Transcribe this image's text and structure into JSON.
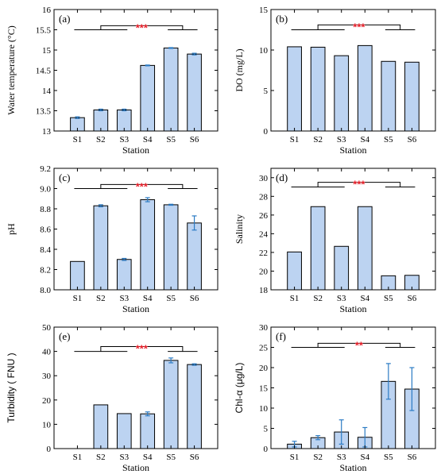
{
  "colors": {
    "bar_fill": "#bcd3f1",
    "bar_stroke": "#000000",
    "error_bar": "#2b7bc4",
    "significance": "#e8202a",
    "bracket": "#000000"
  },
  "chart_data": [
    {
      "type": "bar",
      "panel": "(a)",
      "categories": [
        "S1",
        "S2",
        "S3",
        "S4",
        "S5",
        "S6"
      ],
      "values": [
        13.33,
        13.52,
        13.52,
        14.62,
        15.05,
        14.9
      ],
      "errors": [
        0.02,
        0.02,
        0.02,
        0.01,
        0.01,
        0.02
      ],
      "xlabel": "Station",
      "ylabel": "Water temperature (°C)",
      "ylim": [
        13,
        16
      ],
      "yticks": [
        "13",
        "13.5",
        "14",
        "14.5",
        "15",
        "15.5",
        "16"
      ],
      "significance": "***",
      "bracket_levels": [
        15.5,
        15.6
      ],
      "grid": false
    },
    {
      "type": "bar",
      "panel": "(b)",
      "categories": [
        "S1",
        "S2",
        "S3",
        "S4",
        "S5",
        "S6"
      ],
      "values": [
        10.4,
        10.35,
        9.3,
        10.55,
        8.6,
        8.5
      ],
      "errors": [
        0,
        0,
        0,
        0,
        0,
        0
      ],
      "xlabel": "Station",
      "ylabel": "DO (mg/L)",
      "ylim": [
        0,
        15
      ],
      "yticks": [
        "0",
        "5",
        "10",
        "15"
      ],
      "significance": "***",
      "bracket_levels": [
        12.5,
        13.1
      ],
      "grid": false
    },
    {
      "type": "bar",
      "panel": "(c)",
      "categories": [
        "S1",
        "S2",
        "S3",
        "S4",
        "S5",
        "S6"
      ],
      "values": [
        8.28,
        8.83,
        8.3,
        8.89,
        8.84,
        8.66
      ],
      "errors": [
        0,
        0.01,
        0.01,
        0.02,
        0.005,
        0.07
      ],
      "xlabel": "Station",
      "ylabel": "pH",
      "ylim": [
        8.0,
        9.2
      ],
      "yticks": [
        "8.0",
        "8.2",
        "8.4",
        "8.6",
        "8.8",
        "9.0",
        "9.2"
      ],
      "significance": "***",
      "bracket_levels": [
        9.0,
        9.04
      ],
      "grid": false
    },
    {
      "type": "bar",
      "panel": "(d)",
      "categories": [
        "S1",
        "S2",
        "S3",
        "S4",
        "S5",
        "S6"
      ],
      "values": [
        22.05,
        26.9,
        22.65,
        26.9,
        19.5,
        19.55
      ],
      "errors": [
        0,
        0,
        0,
        0,
        0,
        0
      ],
      "xlabel": "Station",
      "ylabel": "Salinity",
      "ylim": [
        18,
        31
      ],
      "yticks": [
        "18",
        "20",
        "22",
        "24",
        "26",
        "28",
        "30"
      ],
      "significance": "***",
      "bracket_levels": [
        29.0,
        29.5
      ],
      "grid": false
    },
    {
      "type": "bar",
      "panel": "(e)",
      "categories": [
        "S1",
        "S2",
        "S3",
        "S4",
        "S5",
        "S6"
      ],
      "values": [
        0,
        18.0,
        14.4,
        14.3,
        36.3,
        34.6
      ],
      "errors": [
        0,
        0,
        0,
        0.8,
        1.0,
        0.3
      ],
      "xlabel": "Station",
      "ylabel": "Turbidity ( FNU )",
      "ylim": [
        0,
        50
      ],
      "yticks": [
        "0",
        "10",
        "20",
        "30",
        "40",
        "50"
      ],
      "significance": "***",
      "bracket_levels": [
        40,
        42
      ],
      "grid": false
    },
    {
      "type": "bar",
      "panel": "(f)",
      "categories": [
        "S1",
        "S2",
        "S3",
        "S4",
        "S5",
        "S6"
      ],
      "values": [
        1.1,
        2.7,
        4.1,
        2.8,
        16.6,
        14.7
      ],
      "errors": [
        0.7,
        0.5,
        3.0,
        2.4,
        4.4,
        5.3
      ],
      "xlabel": "Station",
      "ylabel": "Chl-α (μg/L)",
      "ylim": [
        0,
        30
      ],
      "yticks": [
        "0",
        "5",
        "10",
        "15",
        "20",
        "25",
        "30"
      ],
      "significance": "**",
      "bracket_levels": [
        25,
        26
      ],
      "grid": false
    }
  ]
}
